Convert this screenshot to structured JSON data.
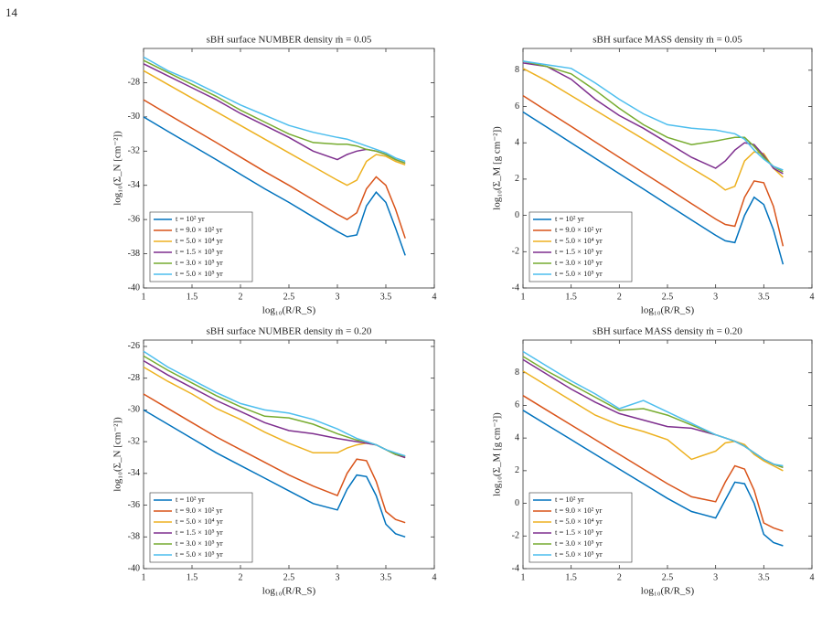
{
  "page_number": "14",
  "chart_data": [
    {
      "type": "line",
      "title": "sBH surface NUMBER density ṁ = 0.05",
      "x_label": "log₁₀(R/R_S)",
      "y_label": "log₁₀(Σ_N [cm⁻²])",
      "xlim": [
        1,
        4
      ],
      "xticks": [
        1,
        1.5,
        2,
        2.5,
        3,
        3.5,
        4
      ],
      "ylim": [
        -40,
        -26
      ],
      "yticks": [
        -40,
        -38,
        -36,
        -34,
        -32,
        -30,
        -28
      ],
      "legend": "lower left",
      "x": [
        1,
        1.25,
        1.5,
        1.75,
        2,
        2.25,
        2.5,
        2.75,
        3,
        3.1,
        3.2,
        3.3,
        3.4,
        3.5,
        3.6,
        3.7
      ],
      "series": [
        {
          "name": "t = 10² yr",
          "color": "#0072BD",
          "values": [
            -30,
            -30.84,
            -31.67,
            -32.5,
            -33.35,
            -34.2,
            -35.0,
            -35.85,
            -36.7,
            -37.0,
            -36.9,
            -35.2,
            -34.4,
            -35.0,
            -36.5,
            -38.1
          ]
        },
        {
          "name": "t = 9.0 × 10² yr",
          "color": "#D95319",
          "values": [
            -29,
            -29.84,
            -30.67,
            -31.5,
            -32.35,
            -33.2,
            -34.0,
            -34.85,
            -35.7,
            -36.0,
            -35.6,
            -34.2,
            -33.5,
            -34.0,
            -35.4,
            -37.1
          ]
        },
        {
          "name": "t = 5.0 × 10⁴ yr",
          "color": "#EDB120",
          "values": [
            -27.3,
            -28.1,
            -28.9,
            -29.7,
            -30.5,
            -31.3,
            -32.1,
            -32.9,
            -33.7,
            -34.0,
            -33.7,
            -32.6,
            -32.2,
            -32.3,
            -32.6,
            -32.8
          ]
        },
        {
          "name": "t = 1.5 × 10⁵ yr",
          "color": "#7E2F8E",
          "values": [
            -26.9,
            -27.6,
            -28.3,
            -29.0,
            -29.8,
            -30.5,
            -31.2,
            -32.0,
            -32.5,
            -32.2,
            -32.0,
            -31.9,
            -32.0,
            -32.2,
            -32.5,
            -32.7
          ]
        },
        {
          "name": "t = 3.0 × 10⁵ yr",
          "color": "#77AC30",
          "values": [
            -26.7,
            -27.4,
            -28.1,
            -28.8,
            -29.6,
            -30.3,
            -31.0,
            -31.5,
            -31.6,
            -31.6,
            -31.7,
            -31.9,
            -32.0,
            -32.2,
            -32.5,
            -32.7
          ]
        },
        {
          "name": "t = 5.0 × 10⁵ yr",
          "color": "#4DBEEE",
          "values": [
            -26.5,
            -27.3,
            -27.9,
            -28.6,
            -29.3,
            -29.9,
            -30.5,
            -30.9,
            -31.2,
            -31.3,
            -31.5,
            -31.7,
            -31.9,
            -32.1,
            -32.4,
            -32.6
          ]
        }
      ]
    },
    {
      "type": "line",
      "title": "sBH surface MASS density ṁ = 0.05",
      "x_label": "log₁₀(R/R_S)",
      "y_label": "log₁₀(Σ_M [g cm⁻²])",
      "xlim": [
        1,
        4
      ],
      "xticks": [
        1,
        1.5,
        2,
        2.5,
        3,
        3.5,
        4
      ],
      "ylim": [
        -4,
        9.2
      ],
      "yticks": [
        -4,
        -2,
        0,
        2,
        4,
        6,
        8
      ],
      "legend": "lower left",
      "x": [
        1,
        1.25,
        1.5,
        1.75,
        2,
        2.25,
        2.5,
        2.75,
        3,
        3.1,
        3.2,
        3.3,
        3.4,
        3.5,
        3.6,
        3.7
      ],
      "series": [
        {
          "name": "t = 10² yr",
          "color": "#0072BD",
          "values": [
            5.7,
            4.85,
            4.0,
            3.15,
            2.3,
            1.45,
            0.6,
            -0.25,
            -1.1,
            -1.4,
            -1.5,
            0.0,
            1.0,
            0.6,
            -0.8,
            -2.7
          ]
        },
        {
          "name": "t = 9.0 × 10² yr",
          "color": "#D95319",
          "values": [
            6.6,
            5.75,
            4.9,
            4.05,
            3.2,
            2.35,
            1.5,
            0.65,
            -0.2,
            -0.5,
            -0.6,
            1.0,
            1.9,
            1.8,
            0.5,
            -1.7
          ]
        },
        {
          "name": "t = 5.0 × 10⁴ yr",
          "color": "#EDB120",
          "values": [
            8.1,
            7.4,
            6.6,
            5.8,
            5.0,
            4.2,
            3.4,
            2.6,
            1.8,
            1.4,
            1.6,
            3.0,
            3.5,
            3.4,
            2.6,
            2.1
          ]
        },
        {
          "name": "t = 1.5 × 10⁵ yr",
          "color": "#7E2F8E",
          "values": [
            8.4,
            8.2,
            7.5,
            6.4,
            5.5,
            4.8,
            4.0,
            3.2,
            2.6,
            3.0,
            3.6,
            4.0,
            3.9,
            3.3,
            2.6,
            2.3
          ]
        },
        {
          "name": "t = 3.0 × 10⁵ yr",
          "color": "#77AC30",
          "values": [
            8.5,
            8.2,
            7.8,
            6.9,
            5.9,
            5.0,
            4.3,
            3.9,
            4.1,
            4.2,
            4.3,
            4.3,
            3.8,
            3.2,
            2.7,
            2.4
          ]
        },
        {
          "name": "t = 5.0 × 10⁵ yr",
          "color": "#4DBEEE",
          "values": [
            8.5,
            8.3,
            8.1,
            7.3,
            6.4,
            5.6,
            5.0,
            4.8,
            4.7,
            4.6,
            4.5,
            4.2,
            3.6,
            3.1,
            2.7,
            2.5
          ]
        }
      ]
    },
    {
      "type": "line",
      "title": "sBH surface NUMBER density ṁ = 0.20",
      "x_label": "log₁₀(R/R_S)",
      "y_label": "log₁₀(Σ_N [cm⁻²])",
      "xlim": [
        1,
        4
      ],
      "xticks": [
        1,
        1.5,
        2,
        2.5,
        3,
        3.5,
        4
      ],
      "ylim": [
        -40,
        -25.6
      ],
      "yticks": [
        -40,
        -38,
        -36,
        -34,
        -32,
        -30,
        -28,
        -26
      ],
      "legend": "lower left",
      "x": [
        1,
        1.25,
        1.5,
        1.75,
        2,
        2.25,
        2.5,
        2.75,
        3,
        3.1,
        3.2,
        3.3,
        3.4,
        3.5,
        3.6,
        3.7
      ],
      "series": [
        {
          "name": "t = 10² yr",
          "color": "#0072BD",
          "values": [
            -30,
            -30.9,
            -31.8,
            -32.7,
            -33.5,
            -34.3,
            -35.1,
            -35.9,
            -36.3,
            -35.0,
            -34.1,
            -34.2,
            -35.4,
            -37.2,
            -37.8,
            -38.0
          ]
        },
        {
          "name": "t = 9.0 × 10² yr",
          "color": "#D95319",
          "values": [
            -29,
            -29.9,
            -30.8,
            -31.7,
            -32.5,
            -33.3,
            -34.1,
            -34.8,
            -35.4,
            -34.0,
            -33.1,
            -33.2,
            -34.5,
            -36.4,
            -36.9,
            -37.1
          ]
        },
        {
          "name": "t = 5.0 × 10⁴ yr",
          "color": "#EDB120",
          "values": [
            -27.3,
            -28.2,
            -29.0,
            -29.9,
            -30.6,
            -31.4,
            -32.1,
            -32.7,
            -32.7,
            -32.4,
            -32.2,
            -32.1,
            -32.2,
            -32.5,
            -32.8,
            -33.0
          ]
        },
        {
          "name": "t = 1.5 × 10⁵ yr",
          "color": "#7E2F8E",
          "values": [
            -26.9,
            -27.8,
            -28.6,
            -29.4,
            -30.1,
            -30.8,
            -31.3,
            -31.5,
            -31.8,
            -31.9,
            -32.0,
            -32.1,
            -32.2,
            -32.5,
            -32.8,
            -33.0
          ]
        },
        {
          "name": "t = 3.0 × 10⁵ yr",
          "color": "#77AC30",
          "values": [
            -26.6,
            -27.5,
            -28.3,
            -29.1,
            -29.8,
            -30.4,
            -30.5,
            -30.9,
            -31.5,
            -31.7,
            -31.9,
            -32.0,
            -32.2,
            -32.5,
            -32.8,
            -32.9
          ]
        },
        {
          "name": "t = 5.0 × 10⁵ yr",
          "color": "#4DBEEE",
          "values": [
            -26.3,
            -27.3,
            -28.1,
            -28.9,
            -29.6,
            -30.0,
            -30.2,
            -30.6,
            -31.2,
            -31.5,
            -31.8,
            -32.0,
            -32.2,
            -32.5,
            -32.7,
            -32.9
          ]
        }
      ]
    },
    {
      "type": "line",
      "title": "sBH surface MASS density ṁ = 0.20",
      "x_label": "log₁₀(R/R_S)",
      "y_label": "log₁₀(Σ_M [g cm⁻²])",
      "xlim": [
        1,
        4
      ],
      "xticks": [
        1,
        1.5,
        2,
        2.5,
        3,
        3.5,
        4
      ],
      "ylim": [
        -4,
        10
      ],
      "yticks": [
        -4,
        -2,
        0,
        2,
        4,
        6,
        8
      ],
      "legend": "lower left",
      "x": [
        1,
        1.25,
        1.5,
        1.75,
        2,
        2.25,
        2.5,
        2.75,
        3,
        3.1,
        3.2,
        3.3,
        3.4,
        3.5,
        3.6,
        3.7
      ],
      "series": [
        {
          "name": "t = 10² yr",
          "color": "#0072BD",
          "values": [
            5.7,
            4.8,
            3.9,
            3.0,
            2.1,
            1.2,
            0.3,
            -0.5,
            -0.9,
            0.2,
            1.3,
            1.2,
            0.0,
            -1.9,
            -2.4,
            -2.6
          ]
        },
        {
          "name": "t = 9.0 × 10² yr",
          "color": "#D95319",
          "values": [
            6.6,
            5.7,
            4.8,
            3.9,
            3.0,
            2.1,
            1.2,
            0.4,
            0.1,
            1.3,
            2.3,
            2.1,
            0.8,
            -1.2,
            -1.5,
            -1.7
          ]
        },
        {
          "name": "t = 5.0 × 10⁴ yr",
          "color": "#EDB120",
          "values": [
            8.1,
            7.2,
            6.3,
            5.4,
            4.8,
            4.4,
            3.9,
            2.7,
            3.2,
            3.7,
            3.8,
            3.6,
            3.0,
            2.6,
            2.3,
            2.0
          ]
        },
        {
          "name": "t = 1.5 × 10⁵ yr",
          "color": "#7E2F8E",
          "values": [
            8.8,
            7.9,
            7.0,
            6.2,
            5.5,
            5.1,
            4.7,
            4.6,
            4.2,
            4.0,
            3.8,
            3.5,
            3.1,
            2.7,
            2.4,
            2.2
          ]
        },
        {
          "name": "t = 3.0 × 10⁵ yr",
          "color": "#77AC30",
          "values": [
            9.0,
            8.1,
            7.3,
            6.5,
            5.7,
            5.8,
            5.4,
            4.8,
            4.2,
            4.0,
            3.8,
            3.5,
            3.1,
            2.7,
            2.4,
            2.2
          ]
        },
        {
          "name": "t = 5.0 × 10⁵ yr",
          "color": "#4DBEEE",
          "values": [
            9.3,
            8.4,
            7.5,
            6.7,
            5.8,
            6.3,
            5.6,
            4.9,
            4.2,
            4.0,
            3.8,
            3.5,
            3.1,
            2.7,
            2.4,
            2.3
          ]
        }
      ]
    }
  ]
}
